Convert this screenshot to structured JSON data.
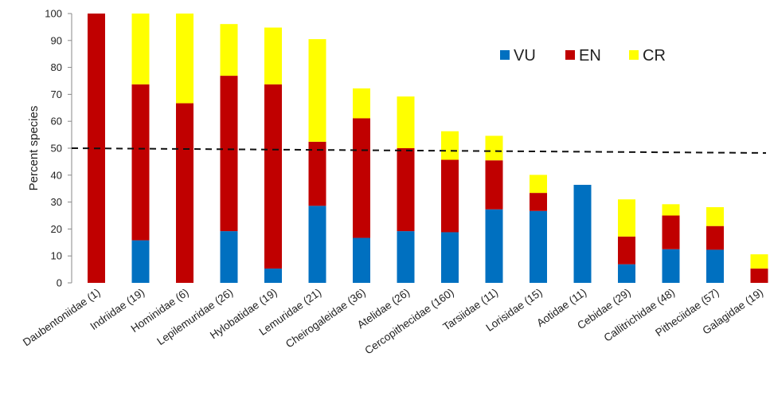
{
  "chart_data": {
    "type": "bar",
    "stacked": true,
    "title": "",
    "xlabel": "",
    "ylabel": "Percent species",
    "ylim": [
      0,
      100
    ],
    "yticks": [
      0,
      10,
      20,
      30,
      40,
      50,
      60,
      70,
      80,
      90,
      100
    ],
    "grid": false,
    "legend_position": "top-right",
    "reference_line": {
      "y": 50,
      "style": "dashed"
    },
    "categories": [
      "Daubentoniidae (1)",
      "Indriidae (19)",
      "Hominidae (6)",
      "Lepilemuridae (26)",
      "Hylobatidae (19)",
      "Lemuridae (21)",
      "Cheirogaleidae (36)",
      "Atelidae (26)",
      "Cercopithecidae (160)",
      "Tarsiidae (11)",
      "Lorisidae (15)",
      "Aotidae (11)",
      "Cebidae (29)",
      "Callitrichidae (48)",
      "Pitheciidae (57)",
      "Galagidae (19)"
    ],
    "series": [
      {
        "name": "VU",
        "color": "#0070C0",
        "values": [
          0,
          15.8,
          0,
          19.2,
          5.3,
          28.6,
          16.7,
          19.2,
          18.8,
          27.3,
          26.7,
          36.4,
          6.9,
          12.5,
          12.3,
          0
        ]
      },
      {
        "name": "EN",
        "color": "#C00000",
        "values": [
          100,
          57.9,
          66.7,
          57.7,
          68.4,
          23.8,
          44.4,
          30.8,
          26.9,
          18.2,
          6.7,
          0,
          10.3,
          12.5,
          8.8,
          5.3
        ]
      },
      {
        "name": "CR",
        "color": "#FFFF00",
        "values": [
          0,
          26.3,
          33.3,
          19.2,
          21.1,
          38.1,
          11.1,
          19.2,
          10.6,
          9.1,
          6.7,
          0,
          13.8,
          4.2,
          7.0,
          5.3
        ]
      }
    ]
  }
}
